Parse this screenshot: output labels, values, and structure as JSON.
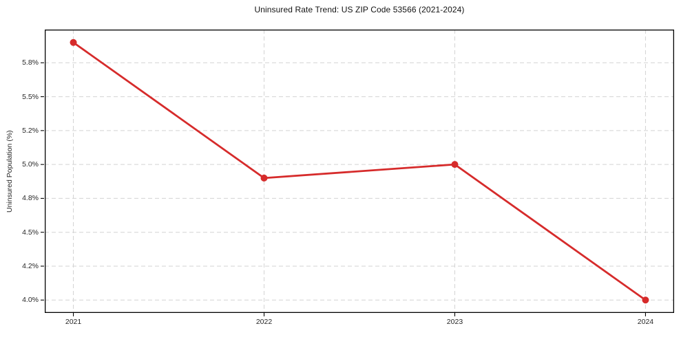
{
  "chart_data": {
    "type": "line",
    "title": "Uninsured Rate Trend: US ZIP Code 53566 (2021-2024)",
    "xlabel": "",
    "ylabel": "Uninsured Population (%)",
    "x": [
      2021,
      2022,
      2023,
      2024
    ],
    "categories": [
      "2021",
      "2022",
      "2023",
      "2024"
    ],
    "series": [
      {
        "name": "Uninsured Population (%)",
        "values": [
          5.9,
          4.9,
          5.0,
          4.0
        ]
      }
    ],
    "xlim": [
      2020.85,
      2024.15
    ],
    "ylim": [
      3.905,
      5.995
    ],
    "yticks": [
      {
        "value": 4.0,
        "label": "4.0%"
      },
      {
        "value": 4.25,
        "label": "4.2%"
      },
      {
        "value": 4.5,
        "label": "4.5%"
      },
      {
        "value": 4.75,
        "label": "4.8%"
      },
      {
        "value": 5.0,
        "label": "5.0%"
      },
      {
        "value": 5.25,
        "label": "5.2%"
      },
      {
        "value": 5.5,
        "label": "5.5%"
      },
      {
        "value": 5.75,
        "label": "5.8%"
      }
    ],
    "grid": {
      "show": true,
      "style": "dashed",
      "color": "#d3d3d3"
    },
    "legend": "none",
    "line_color": "#d62b2b",
    "spine_color": "#000000",
    "marker": "circle",
    "marker_size": 5,
    "line_width": 2.8
  }
}
